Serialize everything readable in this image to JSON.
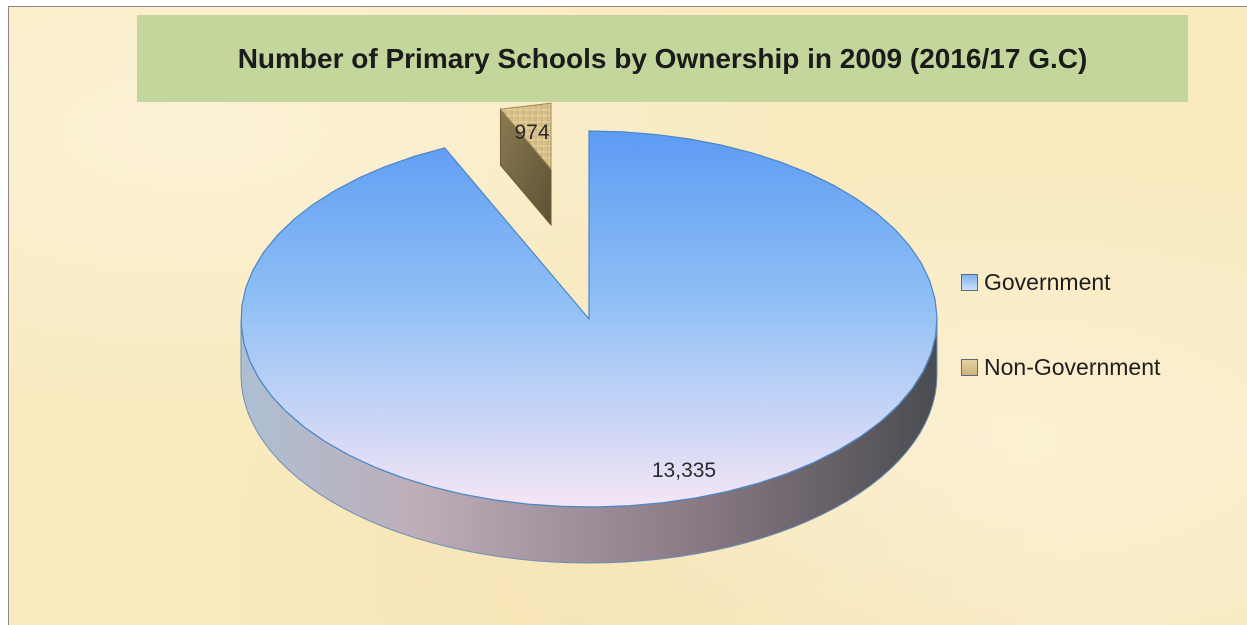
{
  "chart_data": {
    "type": "pie",
    "title": "Number of Primary Schools by Ownership in 2009 (2016/17 G.C)",
    "categories": [
      "Government",
      "Non-Government"
    ],
    "values": [
      13335,
      974
    ],
    "data_labels": [
      "13,335",
      "974"
    ],
    "legend_position": "right",
    "three_d": true,
    "exploded": "Non-Government",
    "colors": [
      "#6aa6f2",
      "#d7c08c"
    ]
  }
}
